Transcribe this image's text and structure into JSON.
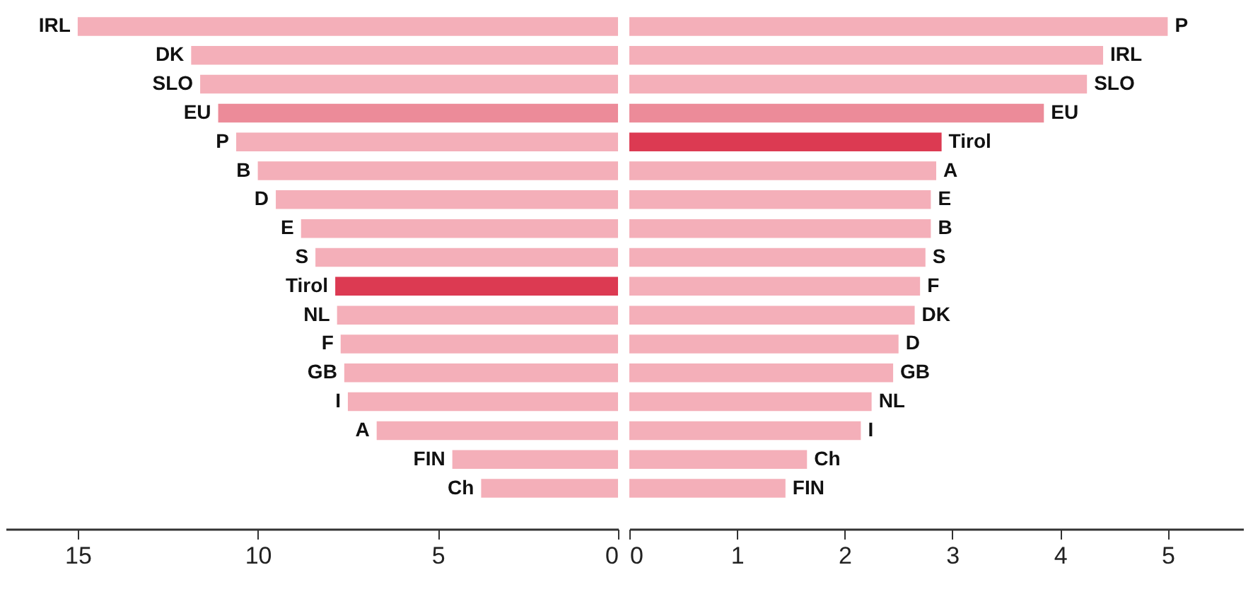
{
  "chart_data": [
    {
      "type": "bar",
      "orientation": "horizontal",
      "categories": [
        "IRL",
        "DK",
        "SLO",
        "EU",
        "P",
        "B",
        "D",
        "E",
        "S",
        "Tirol",
        "NL",
        "F",
        "GB",
        "I",
        "A",
        "FIN",
        "Ch"
      ],
      "values": [
        15.0,
        11.85,
        11.6,
        11.1,
        10.6,
        10.0,
        9.5,
        8.8,
        8.4,
        7.85,
        7.8,
        7.7,
        7.6,
        7.5,
        6.7,
        4.6,
        3.8
      ],
      "colors": [
        "#f4afb9",
        "#f4afb9",
        "#f4afb9",
        "#ec8b99",
        "#f4afb9",
        "#f4afb9",
        "#f4afb9",
        "#f4afb9",
        "#f4afb9",
        "#dc3a52",
        "#f4afb9",
        "#f4afb9",
        "#f4afb9",
        "#f4afb9",
        "#f4afb9",
        "#f4afb9",
        "#f4afb9"
      ],
      "xlim": [
        17,
        0
      ],
      "xticks": [
        15,
        10,
        5,
        0
      ],
      "grid": false
    },
    {
      "type": "bar",
      "orientation": "horizontal",
      "categories": [
        "P",
        "IRL",
        "SLO",
        "EU",
        "Tirol",
        "A",
        "E",
        "B",
        "S",
        "F",
        "DK",
        "D",
        "GB",
        "NL",
        "I",
        "Ch",
        "FIN"
      ],
      "values": [
        5.0,
        4.4,
        4.25,
        3.85,
        2.9,
        2.85,
        2.8,
        2.8,
        2.75,
        2.7,
        2.65,
        2.5,
        2.45,
        2.25,
        2.15,
        1.65,
        1.45
      ],
      "colors": [
        "#f4afb9",
        "#f4afb9",
        "#f4afb9",
        "#ec8b99",
        "#dc3a52",
        "#f4afb9",
        "#f4afb9",
        "#f4afb9",
        "#f4afb9",
        "#f4afb9",
        "#f4afb9",
        "#f4afb9",
        "#f4afb9",
        "#f4afb9",
        "#f4afb9",
        "#f4afb9",
        "#f4afb9"
      ],
      "xlim": [
        0,
        5.7
      ],
      "xticks": [
        0,
        1,
        2,
        3,
        4,
        5
      ],
      "grid": false
    }
  ]
}
